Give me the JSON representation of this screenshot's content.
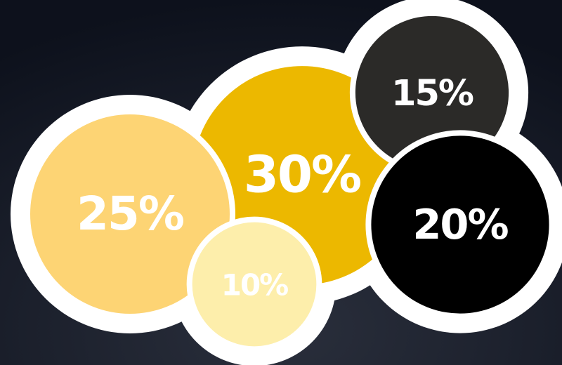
{
  "chart_data": {
    "type": "bubble",
    "values": [
      25,
      30,
      10,
      15,
      20
    ],
    "value_labels": [
      "25%",
      "30%",
      "10%",
      "15%",
      "20%"
    ],
    "colors": [
      "#fdd474",
      "#ecb800",
      "#fdeeab",
      "#2b2a28",
      "#000000"
    ]
  }
}
